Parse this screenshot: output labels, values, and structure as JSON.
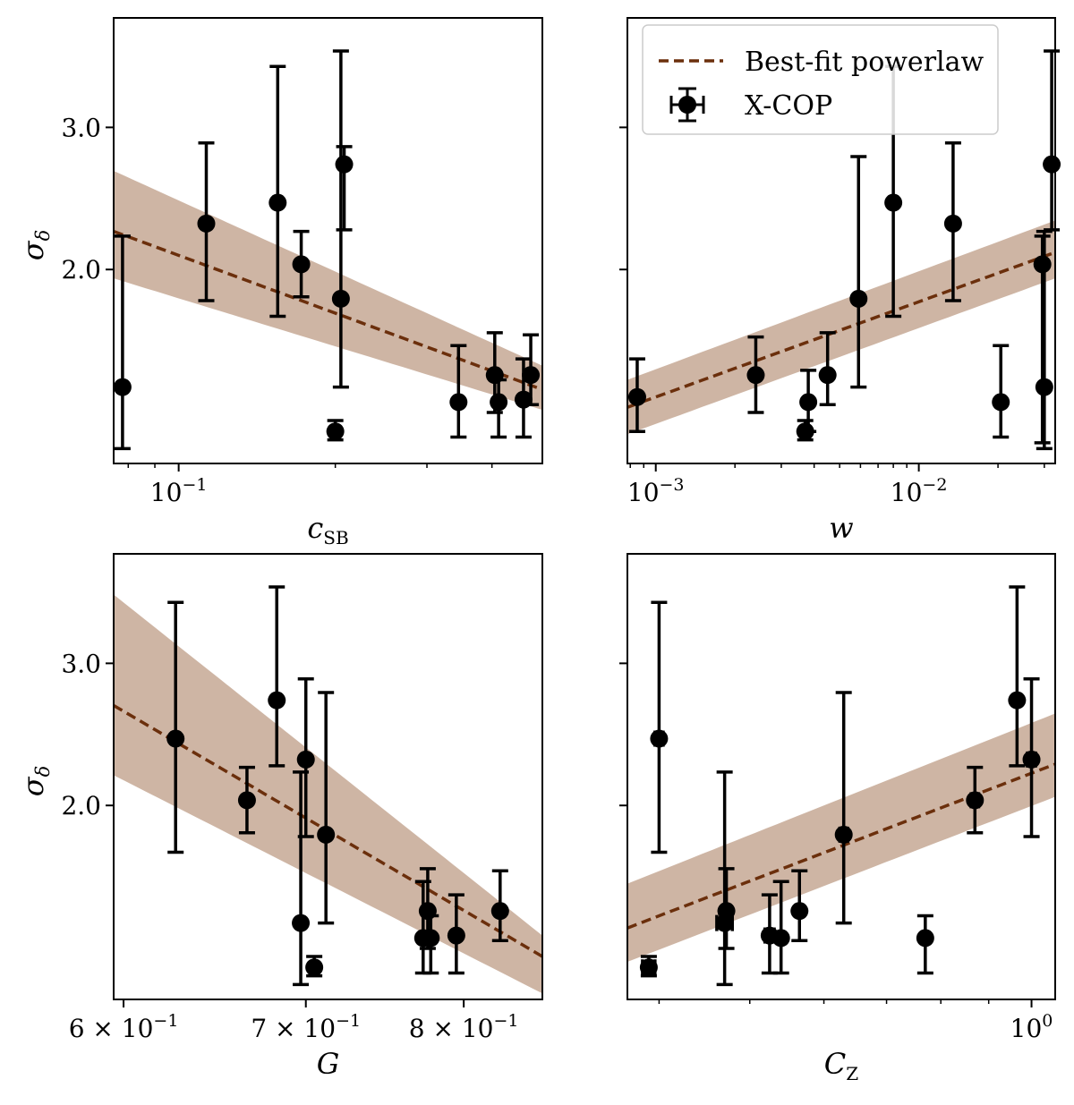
{
  "figure": {
    "legend": {
      "fit_label": "Best-fit powerlaw",
      "data_label": "X-COP"
    },
    "colors": {
      "fit_line": "#6b2f0c",
      "band": "#c9ad9a",
      "points": "#000000",
      "axes": "#000000"
    }
  },
  "chart_data": [
    {
      "id": "csb",
      "type": "scatter",
      "xscale": "log",
      "xlabel": "c",
      "xlabel_sub": "SB",
      "ylabel": "σ",
      "ylabel_sub": "δ",
      "xlim": [
        0.075,
        0.5
      ],
      "ylim": [
        1.15,
        4.1
      ],
      "xticks": [
        {
          "value": 0.1,
          "base": "10",
          "exp": "−1"
        }
      ],
      "yticks": [
        {
          "value": 2.0,
          "label": "2.0"
        },
        {
          "value": 3.0,
          "label": "3.0"
        }
      ],
      "show_ytick_labels": true,
      "fit": {
        "x": [
          0.075,
          0.5
        ],
        "y": [
          2.23,
          1.42
        ],
        "band_upper": [
          2.65,
          1.52
        ],
        "band_lower": [
          1.95,
          1.34
        ]
      },
      "points": [
        {
          "x": 0.078,
          "y": 1.43,
          "ylo": 1.2,
          "yhi": 2.2,
          "xerr": 0.0
        },
        {
          "x": 0.113,
          "y": 2.28,
          "ylo": 1.83,
          "yhi": 2.87,
          "xerr": 0.0
        },
        {
          "x": 0.155,
          "y": 2.42,
          "ylo": 1.75,
          "yhi": 3.57,
          "xerr": 0.0
        },
        {
          "x": 0.172,
          "y": 2.03,
          "ylo": 1.85,
          "yhi": 2.23,
          "xerr": 0.0
        },
        {
          "x": 0.205,
          "y": 1.84,
          "ylo": 1.43,
          "yhi": 3.73,
          "xerr": 0.0
        },
        {
          "x": 0.208,
          "y": 2.7,
          "ylo": 2.24,
          "yhi": 2.84,
          "xerr": 0.0
        },
        {
          "x": 0.2,
          "y": 1.26,
          "ylo": 1.23,
          "yhi": 1.3,
          "xerr": 0.0
        },
        {
          "x": 0.345,
          "y": 1.37,
          "ylo": 1.24,
          "yhi": 1.61,
          "xerr": 0.0
        },
        {
          "x": 0.405,
          "y": 1.48,
          "ylo": 1.33,
          "yhi": 1.67,
          "xerr": 0.0
        },
        {
          "x": 0.412,
          "y": 1.37,
          "ylo": 1.24,
          "yhi": 1.46,
          "xerr": 0.0
        },
        {
          "x": 0.46,
          "y": 1.38,
          "ylo": 1.24,
          "yhi": 1.55,
          "xerr": 0.0
        },
        {
          "x": 0.475,
          "y": 1.48,
          "ylo": 1.36,
          "yhi": 1.66,
          "xerr": 0.0
        }
      ]
    },
    {
      "id": "w",
      "type": "scatter",
      "xscale": "log",
      "xlabel": "w",
      "xlabel_sub": "",
      "ylabel": "",
      "ylabel_sub": "",
      "xlim": [
        0.00078,
        0.033
      ],
      "ylim": [
        1.15,
        4.1
      ],
      "xticks": [
        {
          "value": 0.001,
          "base": "10",
          "exp": "−3"
        },
        {
          "value": 0.01,
          "base": "10",
          "exp": "−2"
        }
      ],
      "yticks": [
        {
          "value": 2.0,
          "label": "2.0"
        },
        {
          "value": 3.0,
          "label": "3.0"
        }
      ],
      "show_ytick_labels": false,
      "fit": {
        "x": [
          0.00078,
          0.033
        ],
        "y": [
          1.35,
          2.1
        ],
        "band_upper": [
          1.46,
          2.3
        ],
        "band_lower": [
          1.25,
          1.95
        ]
      },
      "points": [
        {
          "x": 0.00085,
          "y": 1.39,
          "ylo": 1.26,
          "yhi": 1.55,
          "xerr": 0.0
        },
        {
          "x": 0.0024,
          "y": 1.48,
          "ylo": 1.33,
          "yhi": 1.65,
          "xerr": 0.0
        },
        {
          "x": 0.0038,
          "y": 1.37,
          "ylo": 1.26,
          "yhi": 1.5,
          "xerr": 0.0
        },
        {
          "x": 0.0045,
          "y": 1.48,
          "ylo": 1.36,
          "yhi": 1.67,
          "xerr": 0.0
        },
        {
          "x": 0.0059,
          "y": 1.84,
          "ylo": 1.43,
          "yhi": 2.76,
          "xerr": 0.0
        },
        {
          "x": 0.008,
          "y": 2.42,
          "ylo": 1.75,
          "yhi": 3.57,
          "xerr": 0.0
        },
        {
          "x": 0.0037,
          "y": 1.26,
          "ylo": 1.23,
          "yhi": 1.3,
          "xerr": 0.0
        },
        {
          "x": 0.0135,
          "y": 2.28,
          "ylo": 1.83,
          "yhi": 2.87,
          "xerr": 0.0
        },
        {
          "x": 0.0205,
          "y": 1.37,
          "ylo": 1.24,
          "yhi": 1.61,
          "xerr": 0.0
        },
        {
          "x": 0.0295,
          "y": 2.03,
          "ylo": 1.22,
          "yhi": 2.2,
          "xerr": 0.0
        },
        {
          "x": 0.03,
          "y": 1.43,
          "ylo": 1.2,
          "yhi": 2.23,
          "xerr": 0.0
        },
        {
          "x": 0.032,
          "y": 2.7,
          "ylo": 2.24,
          "yhi": 3.73,
          "xerr": 0.0
        }
      ]
    },
    {
      "id": "G",
      "type": "scatter",
      "xscale": "log",
      "xlabel": "G",
      "xlabel_sub": "",
      "ylabel": "σ",
      "ylabel_sub": "δ",
      "xlim": [
        0.595,
        0.855
      ],
      "ylim": [
        1.15,
        4.1
      ],
      "xticks": [
        {
          "value": 0.6,
          "base": "6 × 10",
          "exp": "−1"
        },
        {
          "value": 0.7,
          "base": "7 × 10",
          "exp": "−1"
        },
        {
          "value": 0.8,
          "base": "8 × 10",
          "exp": "−1"
        }
      ],
      "yticks": [
        {
          "value": 2.0,
          "label": "2.0"
        },
        {
          "value": 3.0,
          "label": "3.0"
        }
      ],
      "show_ytick_labels": true,
      "fit": {
        "x": [
          0.595,
          0.855
        ],
        "y": [
          2.66,
          1.3
        ],
        "band_upper": [
          3.65,
          1.38
        ],
        "band_lower": [
          2.18,
          1.17
        ]
      },
      "points": [
        {
          "x": 0.627,
          "y": 2.42,
          "ylo": 1.75,
          "yhi": 3.57,
          "xerr": 0.0
        },
        {
          "x": 0.666,
          "y": 2.03,
          "ylo": 1.85,
          "yhi": 2.23,
          "xerr": 0.0
        },
        {
          "x": 0.683,
          "y": 2.7,
          "ylo": 2.24,
          "yhi": 3.73,
          "xerr": 0.0
        },
        {
          "x": 0.697,
          "y": 1.43,
          "ylo": 1.2,
          "yhi": 2.2,
          "xerr": 0.0
        },
        {
          "x": 0.7,
          "y": 2.28,
          "ylo": 1.83,
          "yhi": 2.87,
          "xerr": 0.0
        },
        {
          "x": 0.705,
          "y": 1.26,
          "ylo": 1.23,
          "yhi": 1.3,
          "xerr": 0.0
        },
        {
          "x": 0.712,
          "y": 1.84,
          "ylo": 1.43,
          "yhi": 2.76,
          "xerr": 0.0
        },
        {
          "x": 0.773,
          "y": 1.37,
          "ylo": 1.24,
          "yhi": 1.61,
          "xerr": 0.0
        },
        {
          "x": 0.776,
          "y": 1.48,
          "ylo": 1.33,
          "yhi": 1.67,
          "xerr": 0.0
        },
        {
          "x": 0.778,
          "y": 1.37,
          "ylo": 1.24,
          "yhi": 1.46,
          "xerr": 0.0
        },
        {
          "x": 0.795,
          "y": 1.38,
          "ylo": 1.24,
          "yhi": 1.55,
          "xerr": 0.0
        },
        {
          "x": 0.825,
          "y": 1.48,
          "ylo": 1.36,
          "yhi": 1.66,
          "xerr": 0.0
        }
      ]
    },
    {
      "id": "CZ",
      "type": "scatter",
      "xscale": "log",
      "xlabel": "C",
      "xlabel_sub": "Z",
      "ylabel": "",
      "ylabel_sub": "",
      "xlim": [
        0.37,
        1.06
      ],
      "ylim": [
        1.15,
        4.1
      ],
      "xticks": [
        {
          "value": 1.0,
          "base": "10",
          "exp": "0"
        }
      ],
      "yticks": [
        {
          "value": 2.0,
          "label": "2.0"
        },
        {
          "value": 3.0,
          "label": "3.0"
        }
      ],
      "show_ytick_labels": false,
      "fit": {
        "x": [
          0.37,
          1.06
        ],
        "y": [
          1.41,
          2.25
        ],
        "band_upper": [
          1.6,
          2.6
        ],
        "band_lower": [
          1.28,
          2.05
        ]
      },
      "points": [
        {
          "x": 0.39,
          "y": 1.26,
          "ylo": 1.23,
          "yhi": 1.3,
          "xerr": 0.006
        },
        {
          "x": 0.4,
          "y": 2.42,
          "ylo": 1.75,
          "yhi": 3.57,
          "xerr": 0.004
        },
        {
          "x": 0.47,
          "y": 1.43,
          "ylo": 1.2,
          "yhi": 2.2,
          "xerr": 0.009
        },
        {
          "x": 0.472,
          "y": 1.48,
          "ylo": 1.33,
          "yhi": 1.67,
          "xerr": 0.0
        },
        {
          "x": 0.525,
          "y": 1.38,
          "ylo": 1.24,
          "yhi": 1.55,
          "xerr": 0.006
        },
        {
          "x": 0.54,
          "y": 1.37,
          "ylo": 1.24,
          "yhi": 1.61,
          "xerr": 0.0
        },
        {
          "x": 0.565,
          "y": 1.48,
          "ylo": 1.36,
          "yhi": 1.66,
          "xerr": 0.0
        },
        {
          "x": 0.63,
          "y": 1.84,
          "ylo": 1.43,
          "yhi": 2.76,
          "xerr": 0.006
        },
        {
          "x": 0.77,
          "y": 1.37,
          "ylo": 1.24,
          "yhi": 1.46,
          "xerr": 0.0
        },
        {
          "x": 0.87,
          "y": 2.03,
          "ylo": 1.85,
          "yhi": 2.23,
          "xerr": 0.008
        },
        {
          "x": 0.965,
          "y": 2.7,
          "ylo": 2.24,
          "yhi": 3.73,
          "xerr": 0.0
        },
        {
          "x": 1.0,
          "y": 2.28,
          "ylo": 1.83,
          "yhi": 2.87,
          "xerr": 0.01
        }
      ]
    }
  ]
}
